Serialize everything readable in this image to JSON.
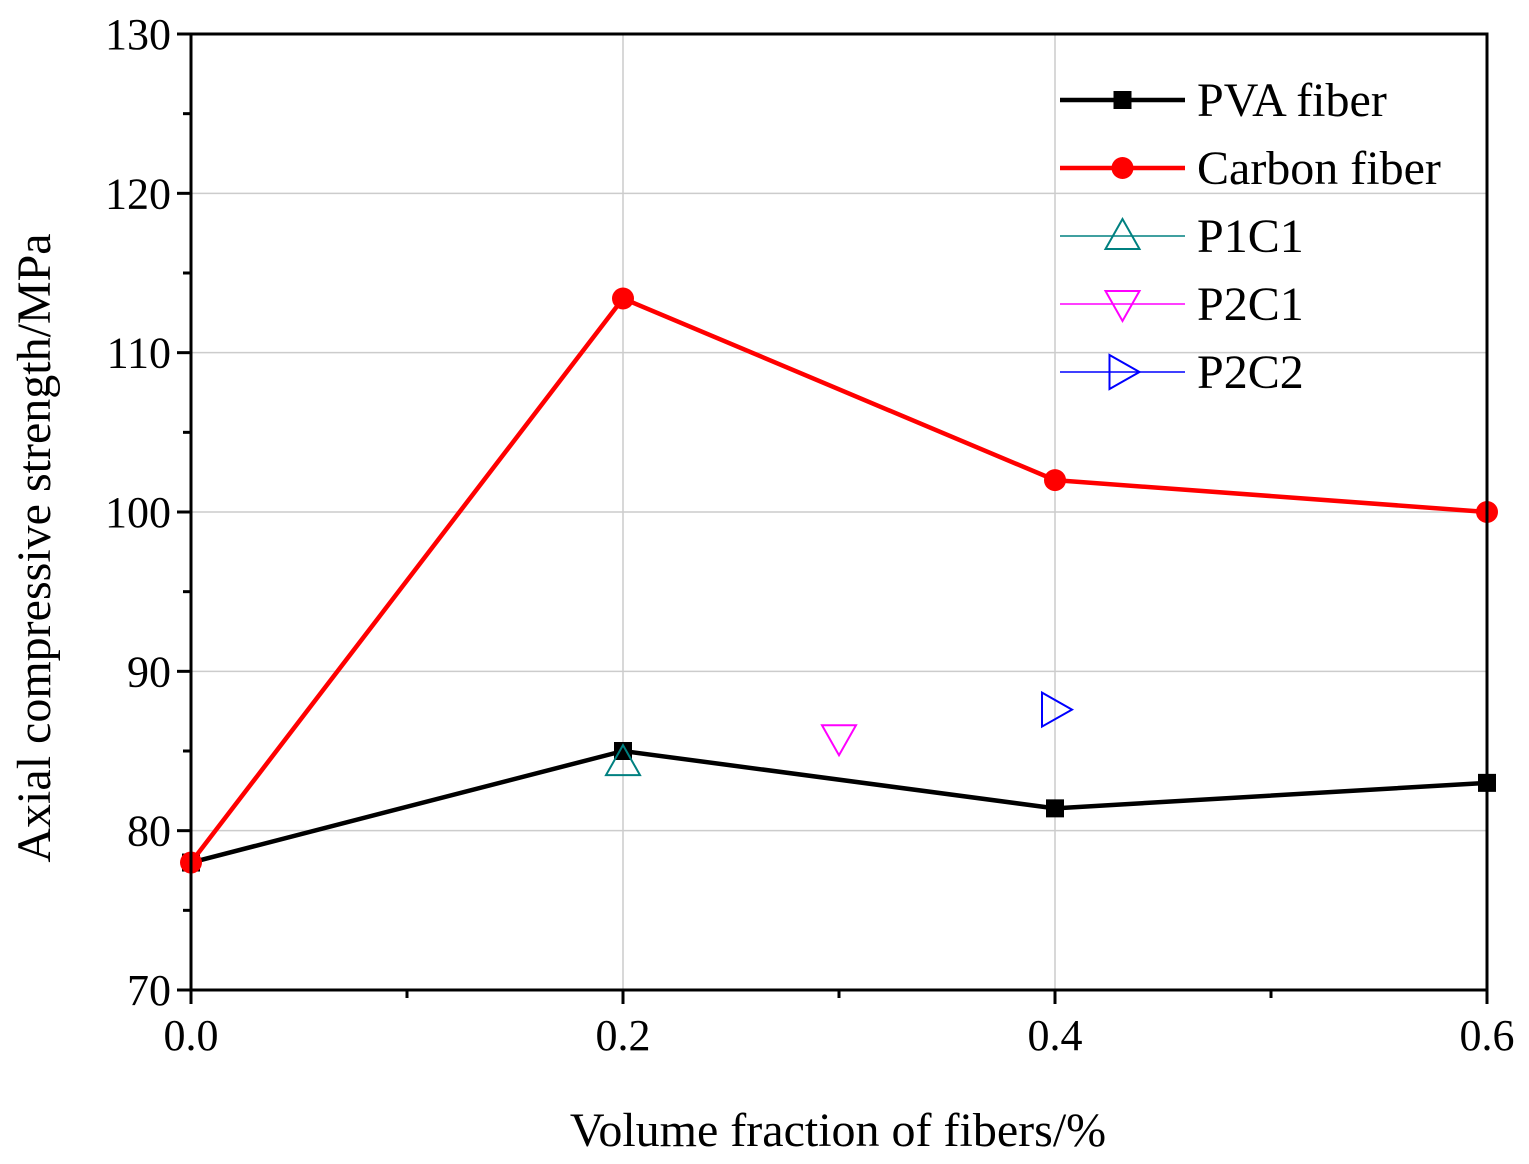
{
  "chart_data": {
    "type": "line",
    "title": "",
    "xlabel": "Volume fraction of fibers/%",
    "ylabel": "Axial compressive strength/MPa",
    "xlim": [
      0.0,
      0.6
    ],
    "ylim": [
      70,
      130
    ],
    "xticks": [
      0.0,
      0.2,
      0.4,
      0.6
    ],
    "xtick_labels": [
      "0.0",
      "0.2",
      "0.4",
      "0.6"
    ],
    "xminor": [
      0.1,
      0.3,
      0.5
    ],
    "yticks": [
      70,
      80,
      90,
      100,
      110,
      120,
      130
    ],
    "ytick_labels": [
      "70",
      "80",
      "90",
      "100",
      "110",
      "120",
      "130"
    ],
    "yminor": [
      75,
      85,
      95,
      105,
      115,
      125
    ],
    "grid": true,
    "legend_position": "top-right",
    "series": [
      {
        "name": "PVA fiber",
        "color": "#000000",
        "marker": "square",
        "line": true,
        "x": [
          0.0,
          0.2,
          0.4,
          0.6
        ],
        "y": [
          78.0,
          85.0,
          81.4,
          83.0
        ]
      },
      {
        "name": "Carbon fiber",
        "color": "#ff0000",
        "marker": "circle",
        "line": true,
        "x": [
          0.0,
          0.2,
          0.4,
          0.6
        ],
        "y": [
          78.0,
          113.4,
          102.0,
          100.0
        ]
      },
      {
        "name": "P1C1",
        "color": "#008080",
        "marker": "triangle-up",
        "line": false,
        "x": [
          0.2
        ],
        "y": [
          84.3
        ]
      },
      {
        "name": "P2C1",
        "color": "#ff00ff",
        "marker": "triangle-down",
        "line": false,
        "x": [
          0.3
        ],
        "y": [
          85.8
        ]
      },
      {
        "name": "P2C2",
        "color": "#0000ff",
        "marker": "triangle-right",
        "line": false,
        "x": [
          0.4
        ],
        "y": [
          87.6
        ]
      }
    ]
  }
}
